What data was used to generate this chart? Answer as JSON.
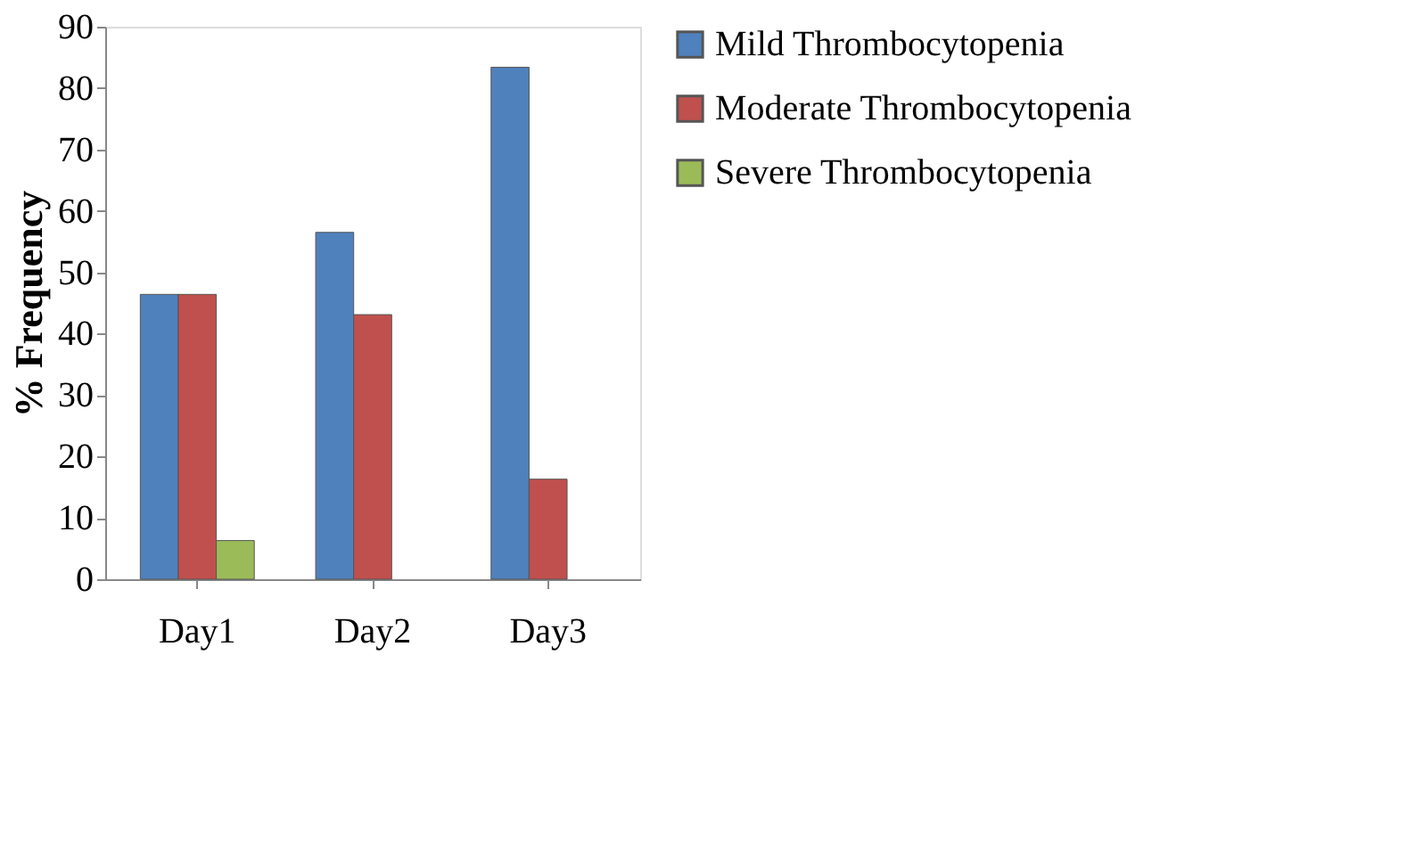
{
  "chart_data": {
    "type": "bar",
    "ylabel": "% Frequency",
    "categories": [
      "Day1",
      "Day2",
      "Day3"
    ],
    "series": [
      {
        "name": "Mild Thrombocytopenia",
        "color": "#4f81bd",
        "values": [
          46.4,
          56.5,
          83.4
        ]
      },
      {
        "name": "Moderate Thrombocytopenia",
        "color": "#c0504d",
        "values": [
          46.4,
          43.1,
          16.3
        ]
      },
      {
        "name": "Severe Thrombocytopenia",
        "color": "#9bbb59",
        "values": [
          6.3,
          null,
          null
        ]
      }
    ],
    "ylim": [
      0,
      90
    ],
    "yticks": [
      0,
      10,
      20,
      30,
      40,
      50,
      60,
      70,
      80,
      90
    ],
    "grid": false,
    "legend": "right"
  }
}
